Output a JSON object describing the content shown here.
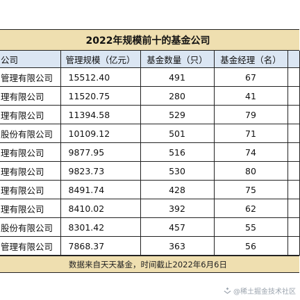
{
  "title": "2022年规模前十的基金公司",
  "columns": {
    "name": "公司",
    "scale": "管理规模（亿元）",
    "count": "基金数量（只）",
    "managers": "基金经理（名）"
  },
  "rows": [
    {
      "name": "管理有限公司",
      "scale": "15512.40",
      "count": "491",
      "managers": "67"
    },
    {
      "name": "理有限公司",
      "scale": "11520.75",
      "count": "280",
      "managers": "41"
    },
    {
      "name": "理有限公司",
      "scale": "11394.58",
      "count": "529",
      "managers": "79"
    },
    {
      "name": "股份有限公司",
      "scale": "10109.12",
      "count": "501",
      "managers": "71"
    },
    {
      "name": "理有限公司",
      "scale": "9877.95",
      "count": "516",
      "managers": "74"
    },
    {
      "name": "理有限公司",
      "scale": "9823.73",
      "count": "530",
      "managers": "80"
    },
    {
      "name": "理有限公司",
      "scale": "8491.74",
      "count": "428",
      "managers": "75"
    },
    {
      "name": "理有限公司",
      "scale": "8410.02",
      "count": "392",
      "managers": "62"
    },
    {
      "name": "股份有限公司",
      "scale": "8301.42",
      "count": "457",
      "managers": "55"
    },
    {
      "name": "管理有限公司",
      "scale": "7868.37",
      "count": "363",
      "managers": "56"
    }
  ],
  "footer": "数据来自天天基金，时间截止2022年6月6日",
  "watermark": "@稀土掘金技术社区",
  "colors": {
    "title_bg": "#efdfb0",
    "header_bg": "#dbe6f3",
    "footer_bg": "#efdfb0",
    "watermark": "#9aa3ad"
  }
}
